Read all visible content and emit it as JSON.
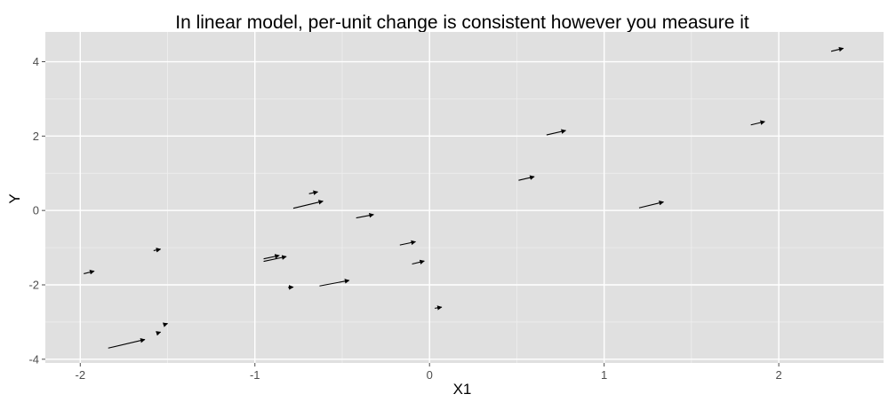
{
  "chart_data": {
    "type": "scatter",
    "title": "In linear model, per-unit change is consistent however you measure it",
    "xlabel": "X1",
    "ylabel": "Y",
    "xlim": [
      -2.2,
      2.6
    ],
    "ylim": [
      -4.1,
      4.8
    ],
    "x_ticks": [
      -2,
      -1,
      0,
      1,
      2
    ],
    "x_tick_labels": [
      "-2",
      "-1",
      "0",
      "1",
      "2"
    ],
    "y_ticks": [
      -4,
      -2,
      0,
      2,
      4
    ],
    "y_tick_labels": [
      "-4",
      "-2",
      "0",
      "2",
      "4"
    ],
    "grid": true,
    "panel_color": "#e0e0e0",
    "arrow_color": "#000000",
    "segments": [
      {
        "x": -1.98,
        "y": -1.7,
        "xend": -1.92,
        "yend": -1.63
      },
      {
        "x": -1.84,
        "y": -3.7,
        "xend": -1.63,
        "yend": -3.47
      },
      {
        "x": -1.58,
        "y": -1.08,
        "xend": -1.54,
        "yend": -1.04
      },
      {
        "x": -1.56,
        "y": -3.3,
        "xend": -1.54,
        "yend": -3.27
      },
      {
        "x": -1.52,
        "y": -3.07,
        "xend": -1.5,
        "yend": -3.04
      },
      {
        "x": -0.95,
        "y": -1.3,
        "xend": -0.86,
        "yend": -1.21
      },
      {
        "x": -0.95,
        "y": -1.37,
        "xend": -0.82,
        "yend": -1.24
      },
      {
        "x": -0.81,
        "y": -2.07,
        "xend": -0.78,
        "yend": -2.06
      },
      {
        "x": -0.78,
        "y": 0.06,
        "xend": -0.61,
        "yend": 0.25
      },
      {
        "x": -0.69,
        "y": 0.45,
        "xend": -0.64,
        "yend": 0.5
      },
      {
        "x": -0.63,
        "y": -2.03,
        "xend": -0.46,
        "yend": -1.88
      },
      {
        "x": -0.42,
        "y": -0.2,
        "xend": -0.32,
        "yend": -0.11
      },
      {
        "x": -0.17,
        "y": -0.93,
        "xend": -0.08,
        "yend": -0.84
      },
      {
        "x": -0.1,
        "y": -1.44,
        "xend": -0.03,
        "yend": -1.36
      },
      {
        "x": 0.03,
        "y": -2.63,
        "xend": 0.07,
        "yend": -2.6
      },
      {
        "x": 0.51,
        "y": 0.81,
        "xend": 0.6,
        "yend": 0.91
      },
      {
        "x": 0.67,
        "y": 2.03,
        "xend": 0.78,
        "yend": 2.15
      },
      {
        "x": 1.2,
        "y": 0.07,
        "xend": 1.34,
        "yend": 0.23
      },
      {
        "x": 1.84,
        "y": 2.3,
        "xend": 1.92,
        "yend": 2.39
      },
      {
        "x": 2.3,
        "y": 4.28,
        "xend": 2.37,
        "yend": 4.36
      }
    ]
  }
}
